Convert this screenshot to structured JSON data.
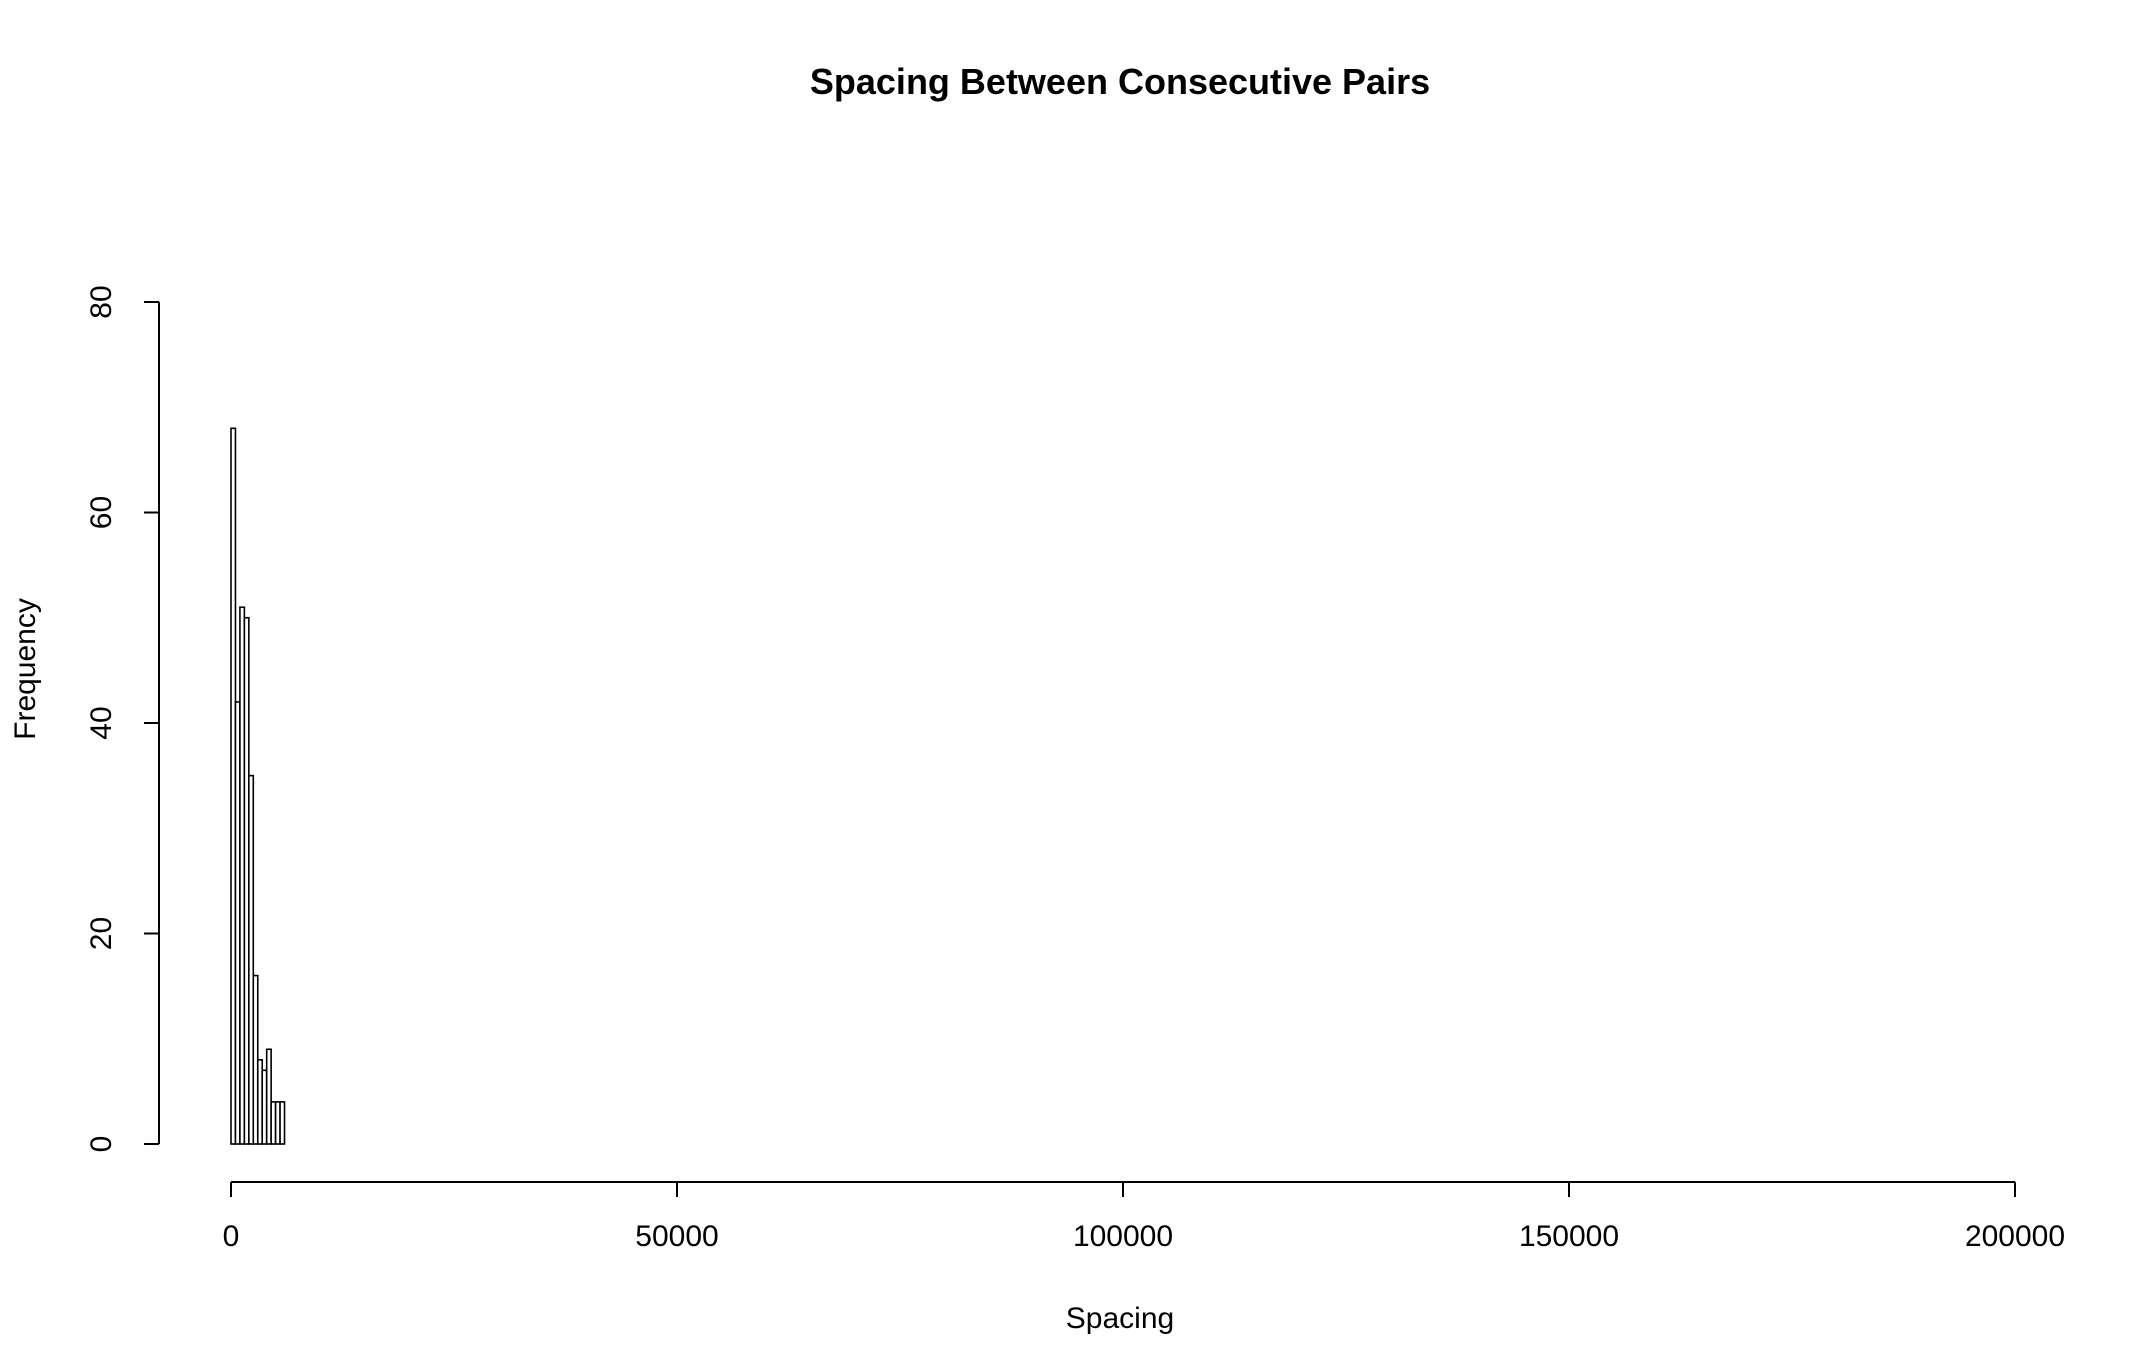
{
  "chart_data": {
    "type": "bar",
    "title": "Spacing Between Consecutive Pairs",
    "xlabel": "Spacing",
    "ylabel": "Frequency",
    "xlim": [
      0,
      200000
    ],
    "ylim": [
      0,
      80
    ],
    "x_ticks": [
      0,
      50000,
      100000,
      150000,
      200000
    ],
    "y_ticks": [
      0,
      20,
      40,
      60,
      80
    ],
    "grid": false,
    "legend": "none",
    "bin_width": 500,
    "bins": [
      {
        "x0": 0,
        "x1": 500,
        "count": 68
      },
      {
        "x0": 500,
        "x1": 1000,
        "count": 42
      },
      {
        "x0": 1000,
        "x1": 1500,
        "count": 51
      },
      {
        "x0": 1500,
        "x1": 2000,
        "count": 50
      },
      {
        "x0": 2000,
        "x1": 2500,
        "count": 35
      },
      {
        "x0": 2500,
        "x1": 3000,
        "count": 16
      },
      {
        "x0": 3000,
        "x1": 3500,
        "count": 8
      },
      {
        "x0": 3500,
        "x1": 4000,
        "count": 7
      },
      {
        "x0": 4000,
        "x1": 4500,
        "count": 9
      },
      {
        "x0": 4500,
        "x1": 5000,
        "count": 4
      },
      {
        "x0": 5000,
        "x1": 5500,
        "count": 4
      },
      {
        "x0": 5500,
        "x1": 6000,
        "count": 4
      }
    ],
    "colors": {
      "bar_fill": "#ffffff",
      "bar_stroke": "#000000",
      "axis": "#000000"
    }
  }
}
